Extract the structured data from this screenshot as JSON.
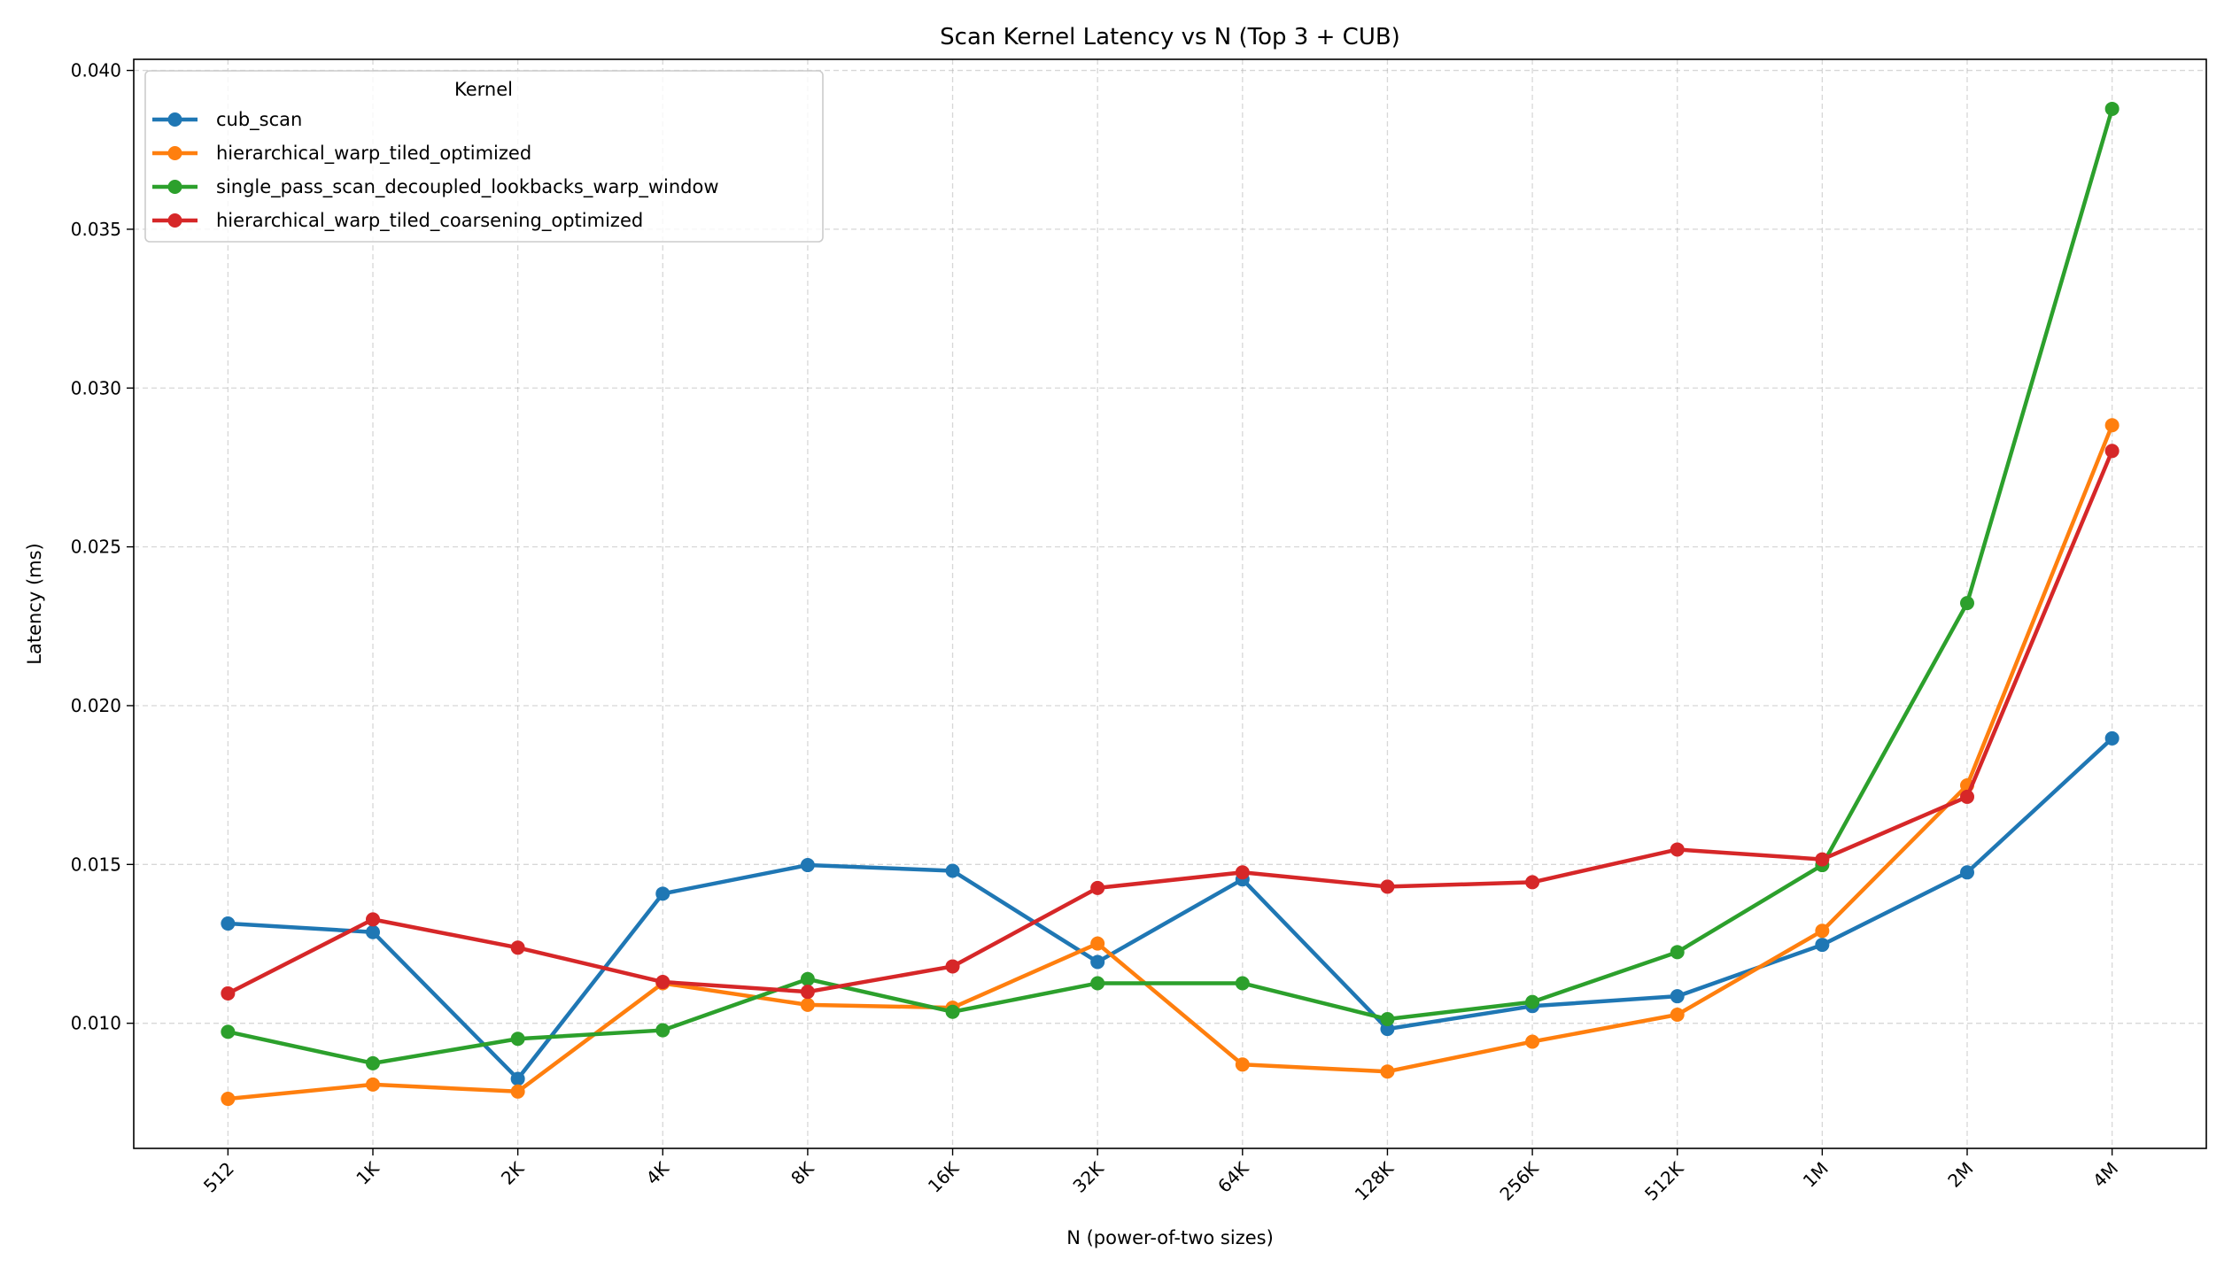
{
  "chart_data": {
    "type": "line",
    "title": "Scan Kernel Latency vs N (Top 3 + CUB)",
    "xlabel": "N (power-of-two sizes)",
    "ylabel": "Latency (ms)",
    "categories": [
      "512",
      "1K",
      "2K",
      "4K",
      "8K",
      "16K",
      "32K",
      "64K",
      "128K",
      "256K",
      "512K",
      "1M",
      "2M",
      "4M"
    ],
    "yticks": [
      0.01,
      0.015,
      0.02,
      0.025,
      0.03,
      0.035,
      0.04
    ],
    "ytick_labels": [
      "0.010",
      "0.015",
      "0.020",
      "0.025",
      "0.030",
      "0.035",
      "0.040"
    ],
    "ylim": [
      0.00606,
      0.04035
    ],
    "xlim": [
      -0.65,
      13.65
    ],
    "grid": true,
    "legend": {
      "title": "Kernel",
      "placement": "top-left"
    },
    "series": [
      {
        "name": "cub_scan",
        "color": "#1f77b4",
        "values": [
          0.01314,
          0.01287,
          0.00825,
          0.01408,
          0.01498,
          0.0148,
          0.01193,
          0.01453,
          0.00982,
          0.01054,
          0.01085,
          0.01247,
          0.01475,
          0.01897
        ]
      },
      {
        "name": "hierarchical_warp_tiled_optimized",
        "color": "#ff7f0e",
        "values": [
          0.00762,
          0.00807,
          0.00785,
          0.01126,
          0.01058,
          0.01049,
          0.01251,
          0.0087,
          0.00848,
          0.00942,
          0.01027,
          0.01291,
          0.01749,
          0.02883
        ]
      },
      {
        "name": "single_pass_scan_decoupled_lookbacks_warp_window",
        "color": "#2ca02c",
        "values": [
          0.00973,
          0.00874,
          0.00951,
          0.00978,
          0.01139,
          0.01036,
          0.01126,
          0.01126,
          0.01013,
          0.01067,
          0.01224,
          0.01498,
          0.02323,
          0.03879
        ]
      },
      {
        "name": "hierarchical_warp_tiled_coarsening_optimized",
        "color": "#d62728",
        "values": [
          0.01094,
          0.01327,
          0.01238,
          0.0113,
          0.01099,
          0.01179,
          0.01426,
          0.01475,
          0.0143,
          0.01444,
          0.01547,
          0.01516,
          0.01713,
          0.02802
        ]
      }
    ]
  }
}
